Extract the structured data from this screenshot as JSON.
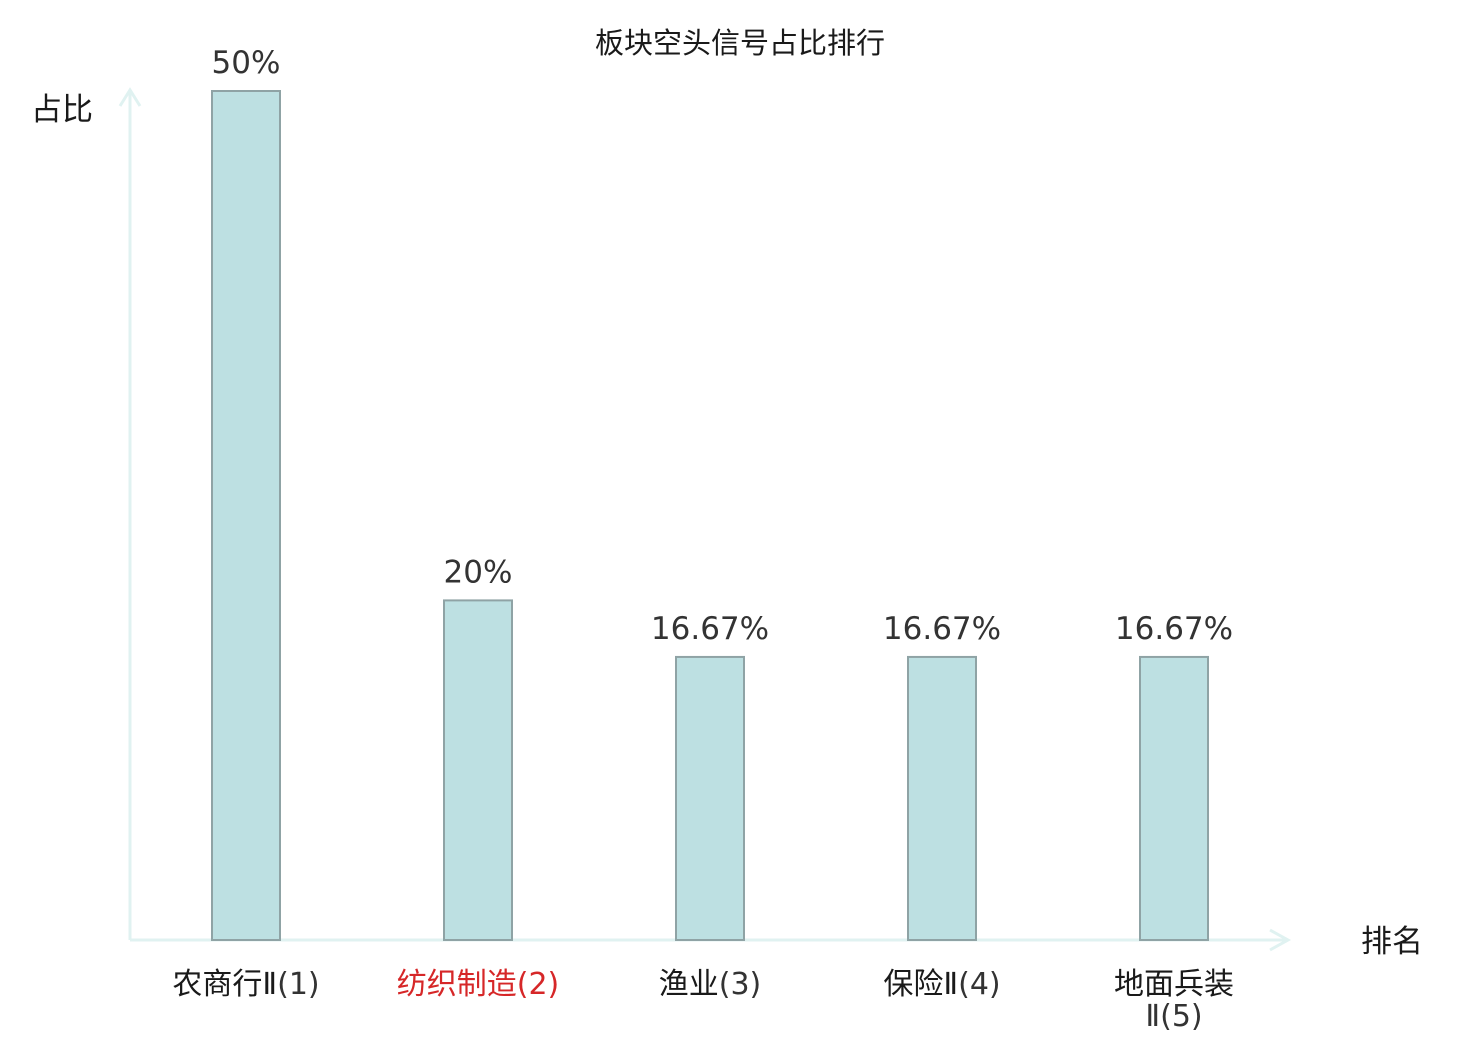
{
  "chart_data": {
    "type": "bar",
    "title": "板块空头信号占比排行",
    "ylabel": "占比",
    "xlabel": "排名",
    "ylim": [
      0,
      50
    ],
    "grid": false,
    "legend": "none",
    "categories": [
      {
        "name": "农商行Ⅱ",
        "rank": "(1)",
        "highlight": false
      },
      {
        "name": "纺织制造",
        "rank": "(2)",
        "highlight": true
      },
      {
        "name": "渔业",
        "rank": "(3)",
        "highlight": false
      },
      {
        "name": "保险Ⅱ",
        "rank": "(4)",
        "highlight": false
      },
      {
        "name": "地面兵装Ⅱ",
        "rank": "(5)",
        "highlight": false
      }
    ],
    "values": [
      50,
      20,
      16.67,
      16.67,
      16.67
    ],
    "value_labels": [
      "50%",
      "20%",
      "16.67%",
      "16.67%",
      "16.67%"
    ],
    "colors": {
      "bar_fill": "#bde0e2",
      "bar_stroke": "#8fa3a5",
      "axis": "#e0f2f1",
      "highlight": "#d62728"
    }
  }
}
